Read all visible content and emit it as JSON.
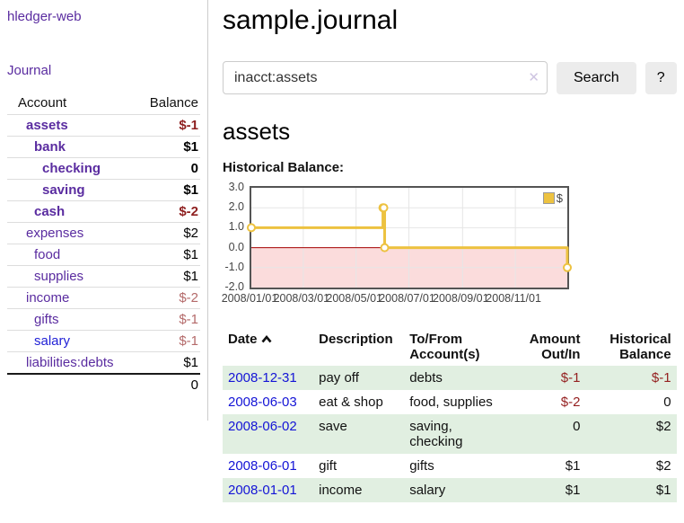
{
  "sidebar": {
    "brand": "hledger-web",
    "journal_link": "Journal",
    "accounts_table": {
      "col_account": "Account",
      "col_balance": "Balance",
      "rows": [
        {
          "name": "assets",
          "balance": "$-1"
        },
        {
          "name": "bank",
          "balance": "$1"
        },
        {
          "name": "checking",
          "balance": "0"
        },
        {
          "name": "saving",
          "balance": "$1"
        },
        {
          "name": "cash",
          "balance": "$-2"
        },
        {
          "name": "expenses",
          "balance": "$2"
        },
        {
          "name": "food",
          "balance": "$1"
        },
        {
          "name": "supplies",
          "balance": "$1"
        },
        {
          "name": "income",
          "balance": "$-2"
        },
        {
          "name": "gifts",
          "balance": "$-1"
        },
        {
          "name": "salary",
          "balance": "$-1"
        },
        {
          "name": "liabilities:debts",
          "balance": "$1"
        }
      ],
      "total": "0"
    }
  },
  "main": {
    "title": "sample.journal",
    "search": {
      "value": "inacct:assets",
      "clear_icon": "✕",
      "search_button": "Search",
      "help_button": "?"
    },
    "heading": "assets",
    "chart_title": "Historical Balance:"
  },
  "chart_data": {
    "type": "line",
    "style": "step",
    "title": "Historical Balance",
    "legend": [
      {
        "label": "$",
        "color": "#edc240"
      }
    ],
    "xlim": [
      "2008-01-01",
      "2008-12-31"
    ],
    "ylim": [
      -2,
      3
    ],
    "x_ticks": [
      {
        "date": "2008-01-01",
        "label": "2008/01/01"
      },
      {
        "date": "2008-03-01",
        "label": "2008/03/01"
      },
      {
        "date": "2008-05-01",
        "label": "2008/05/01"
      },
      {
        "date": "2008-07-01",
        "label": "2008/07/01"
      },
      {
        "date": "2008-09-01",
        "label": "2008/09/01"
      },
      {
        "date": "2008-11-01",
        "label": "2008/11/01"
      }
    ],
    "y_ticks": [
      3,
      2,
      1,
      0,
      -1,
      -2
    ],
    "y_tick_labels": [
      "3.0",
      "2.0",
      "1.0",
      "0.0",
      "-1.0",
      "-2.0"
    ],
    "series": [
      {
        "name": "$",
        "color": "#edc240",
        "points": [
          {
            "x": "2008-01-01",
            "y": 1
          },
          {
            "x": "2008-06-01",
            "y": 2
          },
          {
            "x": "2008-06-02",
            "y": 2
          },
          {
            "x": "2008-06-03",
            "y": 0
          },
          {
            "x": "2008-12-31",
            "y": -1
          }
        ]
      }
    ],
    "colors": {
      "negative_region": "#fbdcdc",
      "zero_line": "#a40000",
      "grid": "#e6e6e6",
      "border": "#545454"
    }
  },
  "register": {
    "columns": {
      "date": "Date",
      "description": "Description",
      "accounts": "To/From Account(s)",
      "amount": "Amount Out/In",
      "balance": "Historical Balance"
    },
    "rows": [
      {
        "date": "2008-12-31",
        "description": "pay off",
        "accounts": "debts",
        "amount": "$-1",
        "balance": "$-1"
      },
      {
        "date": "2008-06-03",
        "description": "eat & shop",
        "accounts": "food, supplies",
        "amount": "$-2",
        "balance": "0"
      },
      {
        "date": "2008-06-02",
        "description": "save",
        "accounts": "saving, checking",
        "amount": "0",
        "balance": "$2"
      },
      {
        "date": "2008-06-01",
        "description": "gift",
        "accounts": "gifts",
        "amount": "$1",
        "balance": "$2"
      },
      {
        "date": "2008-01-01",
        "description": "income",
        "accounts": "salary",
        "amount": "$1",
        "balance": "$1"
      }
    ]
  }
}
